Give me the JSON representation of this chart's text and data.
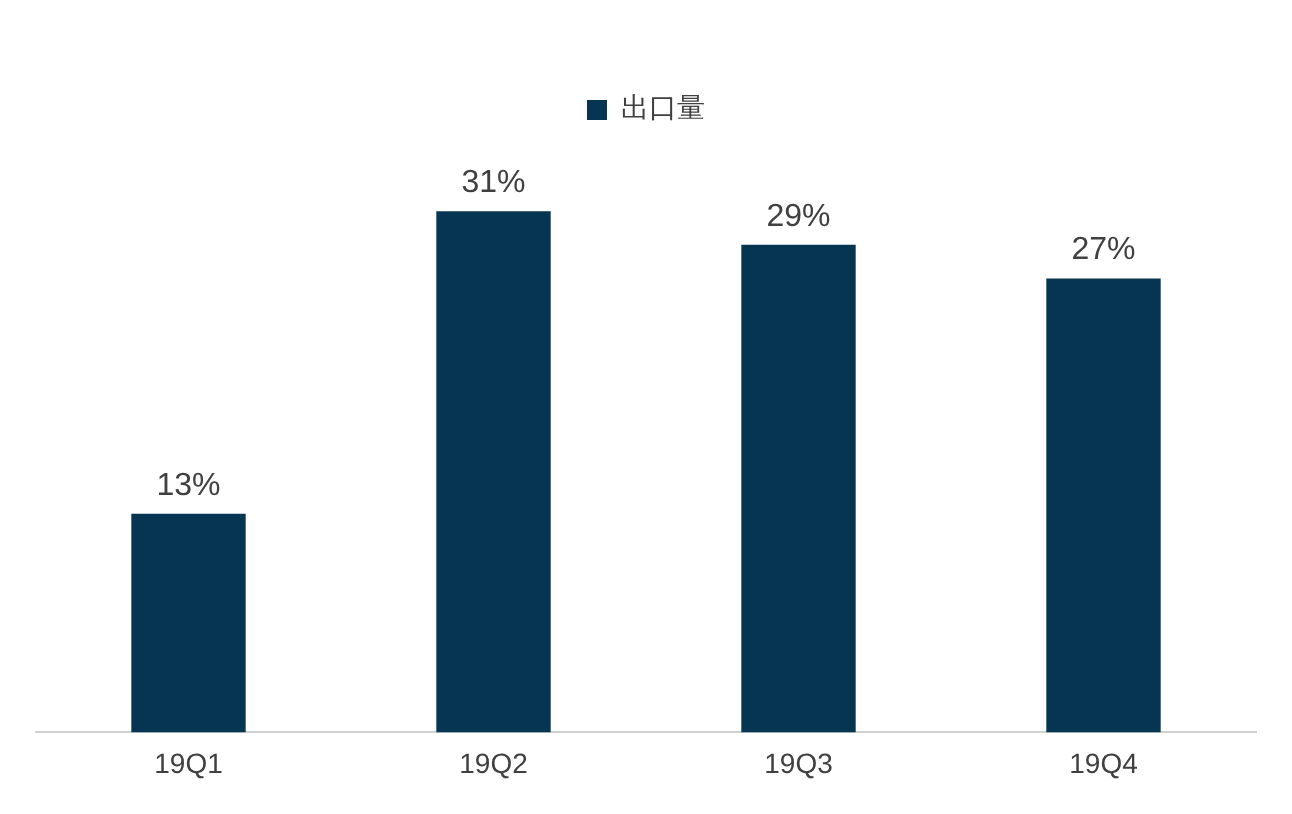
{
  "chart_data": {
    "type": "bar",
    "categories": [
      "19Q1",
      "19Q2",
      "19Q3",
      "19Q4"
    ],
    "series": [
      {
        "name": "出口量",
        "color": "#063551",
        "values": [
          13,
          31,
          29,
          27
        ],
        "value_labels": [
          "13%",
          "31%",
          "29%",
          "27%"
        ]
      }
    ],
    "legend": "top",
    "grid": false,
    "tick_labels": "x"
  }
}
